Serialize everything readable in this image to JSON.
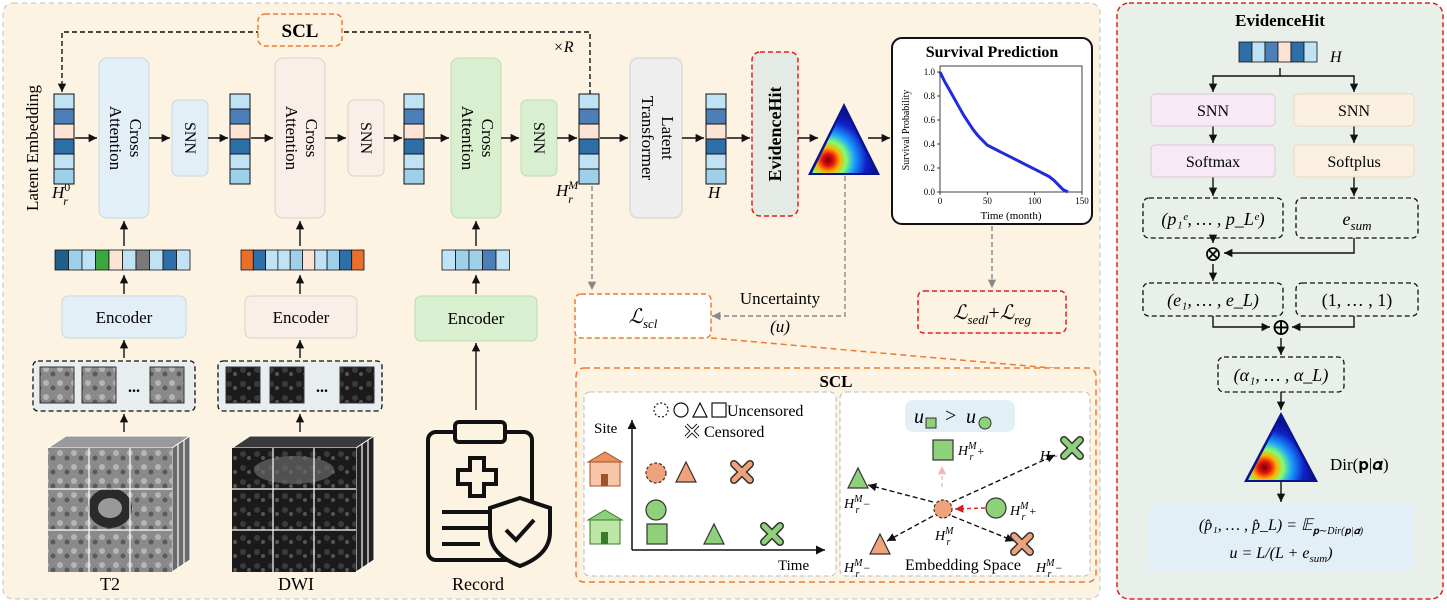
{
  "main": {
    "scl_top_label": "SCL",
    "repeat_label": "×R",
    "latent_embedding_label": "Latent Embedding",
    "h0_label": "H",
    "h0_sup": "0",
    "h0_sub": "r",
    "cross_attention_label_1": "Cross",
    "cross_attention_label_2": "Attention",
    "snn_label": "SNN",
    "hm_label": "H",
    "hm_sup": "M",
    "hm_sub": "r",
    "latent_transformer_label_1": "Latent",
    "latent_transformer_label_2": "Transformer",
    "h_label": "H",
    "evidencehit_label": "EvidenceHit",
    "encoder_label": "Encoder",
    "t2_label": "T2",
    "dwi_label": "DWI",
    "record_label": "Record",
    "ellipsis": "...",
    "uncertainty_label": "Uncertainty",
    "u_label": "(u)",
    "lscl_label": "ℒ",
    "lscl_sub": "scl",
    "loss_sedl": "ℒ",
    "loss_sedl_sub": "sedl",
    "loss_plus": "+",
    "loss_reg": "ℒ",
    "loss_reg_sub": "reg"
  },
  "survival": {
    "title": "Survival Prediction",
    "ylabel": "Survival Probability",
    "xlabel": "Time (month)",
    "yticks": [
      "0.0",
      "0.2",
      "0.4",
      "0.6",
      "0.8",
      "1.0"
    ],
    "xticks": [
      "0",
      "50",
      "100",
      "150"
    ]
  },
  "chart_data": {
    "type": "line",
    "title": "Survival Prediction",
    "xlabel": "Time (month)",
    "ylabel": "Survival Probability",
    "xlim": [
      0,
      150
    ],
    "ylim": [
      0,
      1.05
    ],
    "series": [
      {
        "color": "#1f2be0",
        "x": [
          0,
          5,
          10,
          15,
          20,
          25,
          30,
          35,
          40,
          45,
          50,
          55,
          60,
          65,
          70,
          75,
          80,
          85,
          90,
          95,
          100,
          105,
          110,
          115,
          120,
          125,
          130,
          135
        ],
        "y": [
          1.0,
          0.92,
          0.85,
          0.78,
          0.71,
          0.64,
          0.58,
          0.52,
          0.47,
          0.43,
          0.39,
          0.37,
          0.35,
          0.33,
          0.31,
          0.29,
          0.27,
          0.25,
          0.23,
          0.21,
          0.19,
          0.17,
          0.15,
          0.13,
          0.1,
          0.06,
          0.02,
          0.0
        ]
      }
    ]
  },
  "scl_panel": {
    "title": "SCL",
    "legend_uncensored": "Uncensored",
    "legend_censored": "Censored",
    "site_label": "Site",
    "time_label": "Time",
    "embedding_space_label": "Embedding Space",
    "inequality": ">",
    "h_label": "H",
    "h_sup_plus": "M",
    "h_sub": "r",
    "plus": "+",
    "minus": "−"
  },
  "evidence_panel": {
    "title": "EvidenceHit",
    "h_label": "H",
    "snn_left": "SNN",
    "snn_right": "SNN",
    "softmax": "Softmax",
    "softplus": "Softplus",
    "p_vector": "(p₁ᵉ, … , p_Lᵉ)",
    "e_sum": "e",
    "e_sum_sub": "sum",
    "otimes": "⊗",
    "oplus": "⊕",
    "e_vector": "(e₁, … , e_L)",
    "ones_vector": "(1, … , 1)",
    "alpha_vector": "(α₁, … , α_L)",
    "dir_label": "Dir(𝐩|𝜶)",
    "formula_1": "(p̂₁, … , p̂_L) = 𝔼",
    "formula_1_sub": "𝐩∼Dir(𝐩|𝜶)",
    "formula_2": "u = L/(L + e",
    "formula_2_sub": "sum",
    "formula_2_end": ")"
  },
  "colors": {
    "panel_bg": "#fdf3e3",
    "right_panel_bg": "#e9f0ea",
    "blue_box": "#e3eff7",
    "pink_box": "#faeee9",
    "green_box": "#d8f0d0",
    "gray_box": "#eeeeee",
    "red_dash": "#e02020",
    "orange_dash": "#ee7a35",
    "accent_green": "#8fd17a",
    "accent_orange": "#f0a27a"
  }
}
